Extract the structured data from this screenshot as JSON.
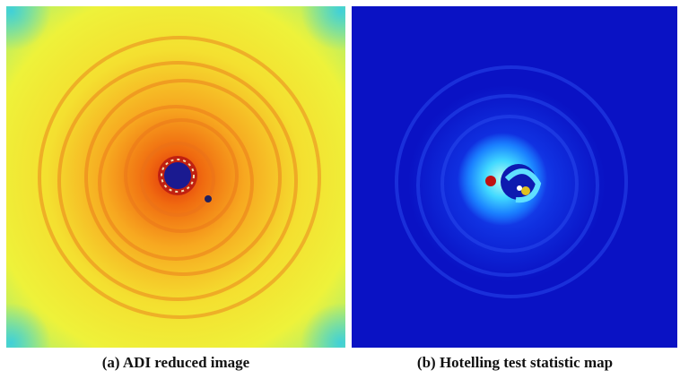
{
  "figure": {
    "panels": [
      {
        "caption": "(a) ADI reduced image"
      },
      {
        "caption": "(b) Hotelling test statistic map"
      }
    ]
  }
}
